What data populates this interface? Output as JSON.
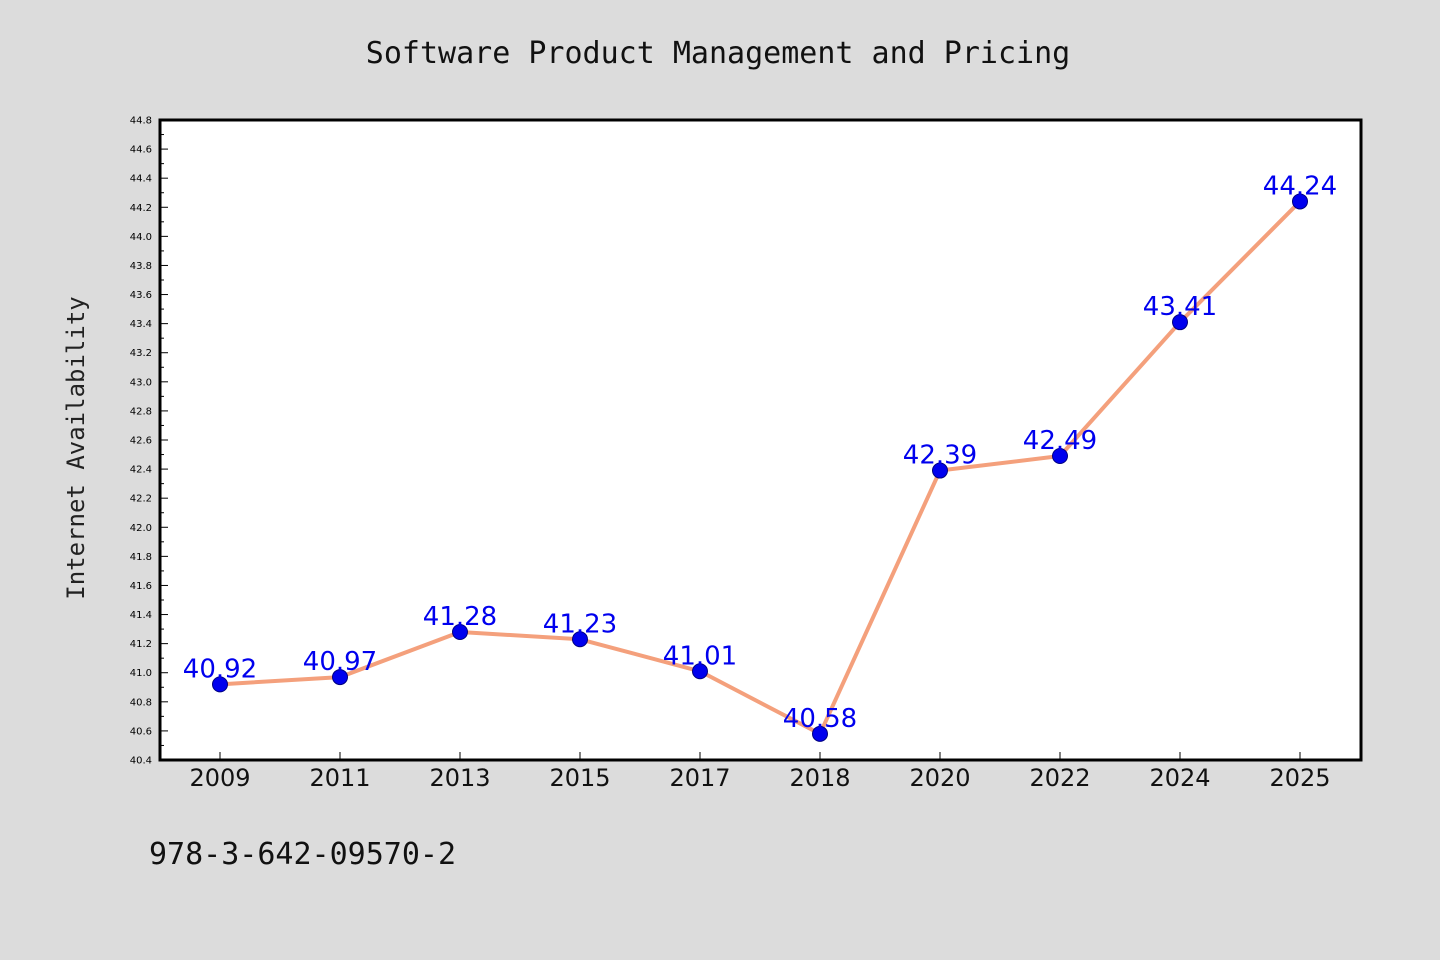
{
  "chart_data": {
    "type": "line",
    "title": "Software Product Management and Pricing",
    "xlabel": "",
    "ylabel": "Internet Availability",
    "categories": [
      "2009",
      "2011",
      "2013",
      "2015",
      "2017",
      "2018",
      "2020",
      "2022",
      "2024",
      "2025"
    ],
    "series": [
      {
        "values": [
          40.92,
          40.97,
          41.28,
          41.23,
          41.01,
          40.58,
          42.39,
          42.49,
          43.41,
          44.24
        ],
        "labels": [
          "40.92",
          "40.97",
          "41.28",
          "41.23",
          "41.01",
          "40.58",
          "42.39",
          "42.49",
          "43.41",
          "44.24"
        ],
        "line_color": "#f4a07c",
        "marker_color": "#0000ee",
        "label_color": "#0000ee"
      }
    ],
    "ylim": [
      40.4,
      44.8
    ],
    "yticks": [
      "40.4",
      "40.6",
      "40.8",
      "41.0",
      "41.2",
      "41.4",
      "41.6",
      "41.8",
      "42.0",
      "42.2",
      "42.4",
      "42.6",
      "42.8",
      "43.0",
      "43.2",
      "43.4",
      "43.6",
      "43.8",
      "44.0",
      "44.2",
      "44.4",
      "44.6",
      "44.8"
    ],
    "grid": false,
    "legend": "none"
  },
  "annotation": {
    "text": "978-3-642-09570-2"
  },
  "colors": {
    "background": "#dcdcdc",
    "plot_background": "#ffffff",
    "axis": "#000000"
  }
}
